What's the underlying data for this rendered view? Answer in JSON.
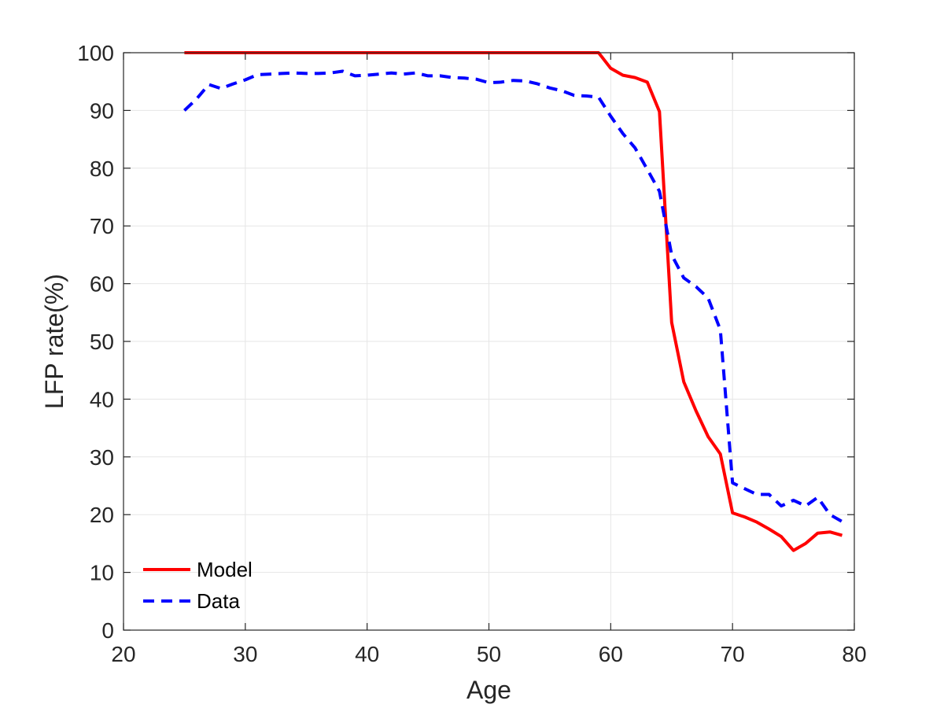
{
  "chart_data": {
    "type": "line",
    "title": "",
    "xlabel": "Age",
    "ylabel": "LFP rate(%)",
    "xlim": [
      20,
      80
    ],
    "ylim": [
      0,
      100
    ],
    "xticks": [
      "20",
      "30",
      "40",
      "50",
      "60",
      "70",
      "80"
    ],
    "yticks": [
      "0",
      "10",
      "20",
      "30",
      "40",
      "50",
      "60",
      "70",
      "80",
      "90",
      "100"
    ],
    "grid": true,
    "legend_position": "bottom-left",
    "series": [
      {
        "name": "Model",
        "color": "#ff0000",
        "style": "solid",
        "x": [
          25,
          26,
          27,
          28,
          29,
          30,
          31,
          32,
          33,
          34,
          35,
          36,
          37,
          38,
          39,
          40,
          41,
          42,
          43,
          44,
          45,
          46,
          47,
          48,
          49,
          50,
          51,
          52,
          53,
          54,
          55,
          56,
          57,
          58,
          59,
          60,
          61,
          62,
          63,
          64,
          65,
          66,
          67,
          68,
          69,
          70,
          71,
          72,
          73,
          74,
          75,
          76,
          77,
          78,
          79
        ],
        "y": [
          100,
          100,
          100,
          100,
          100,
          100,
          100,
          100,
          100,
          100,
          100,
          100,
          100,
          100,
          100,
          100,
          100,
          100,
          100,
          100,
          100,
          100,
          100,
          100,
          100,
          100,
          100,
          100,
          100,
          100,
          100,
          100,
          100,
          100,
          100,
          97.3,
          96.1,
          95.7,
          94.9,
          89.8,
          53.3,
          43.0,
          38.0,
          33.5,
          30.5,
          20.3,
          19.6,
          18.7,
          17.5,
          16.2,
          13.8,
          15.0,
          16.8,
          17.0,
          16.4
        ]
      },
      {
        "name": "Data",
        "color": "#0000ff",
        "style": "dashed",
        "x": [
          25,
          26,
          27,
          28,
          29,
          30,
          31,
          32,
          33,
          34,
          35,
          36,
          37,
          38,
          39,
          40,
          41,
          42,
          43,
          44,
          45,
          46,
          47,
          48,
          49,
          50,
          51,
          52,
          53,
          54,
          55,
          56,
          57,
          58,
          59,
          60,
          61,
          62,
          63,
          64,
          65,
          66,
          67,
          68,
          69,
          70,
          71,
          72,
          73,
          74,
          75,
          76,
          77,
          78,
          79
        ],
        "y": [
          90.0,
          92.0,
          94.5,
          93.8,
          94.6,
          95.3,
          96.2,
          96.3,
          96.4,
          96.5,
          96.4,
          96.4,
          96.5,
          96.8,
          96.0,
          96.1,
          96.3,
          96.5,
          96.3,
          96.5,
          96.0,
          96.0,
          95.7,
          95.6,
          95.4,
          94.8,
          94.9,
          95.2,
          95.1,
          94.6,
          93.9,
          93.4,
          92.6,
          92.5,
          92.3,
          89.0,
          86.0,
          83.5,
          79.8,
          76.0,
          65.0,
          61.0,
          59.5,
          57.5,
          52.0,
          25.5,
          24.5,
          23.5,
          23.5,
          21.5,
          22.5,
          21.5,
          23.0,
          20.0,
          18.8
        ]
      }
    ]
  }
}
